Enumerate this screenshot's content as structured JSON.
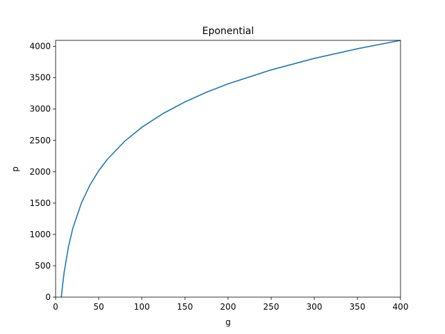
{
  "chart_data": {
    "type": "line",
    "title": "Eponential",
    "x_label": "g",
    "y_label": "p",
    "x": [
      6.66,
      7,
      8,
      10,
      15,
      20,
      30,
      40,
      50,
      60,
      80,
      100,
      125,
      150,
      175,
      200,
      250,
      300,
      350,
      400
    ],
    "series": [
      {
        "name": "p",
        "color": "#1f77b4",
        "values": [
          0,
          50,
          183,
          406,
          812,
          1100,
          1505,
          1793,
          2016,
          2198,
          2486,
          2709,
          2932,
          3114,
          3269,
          3402,
          3625,
          3808,
          3962,
          4096
        ]
      }
    ],
    "xlim": [
      0,
      400
    ],
    "xticks": [
      0,
      50,
      100,
      150,
      200,
      250,
      300,
      350,
      400
    ],
    "ylim": [
      0,
      4096
    ],
    "yticks": [
      0,
      500,
      1000,
      1500,
      2000,
      2500,
      3000,
      3500,
      4000
    ],
    "grid": false
  }
}
